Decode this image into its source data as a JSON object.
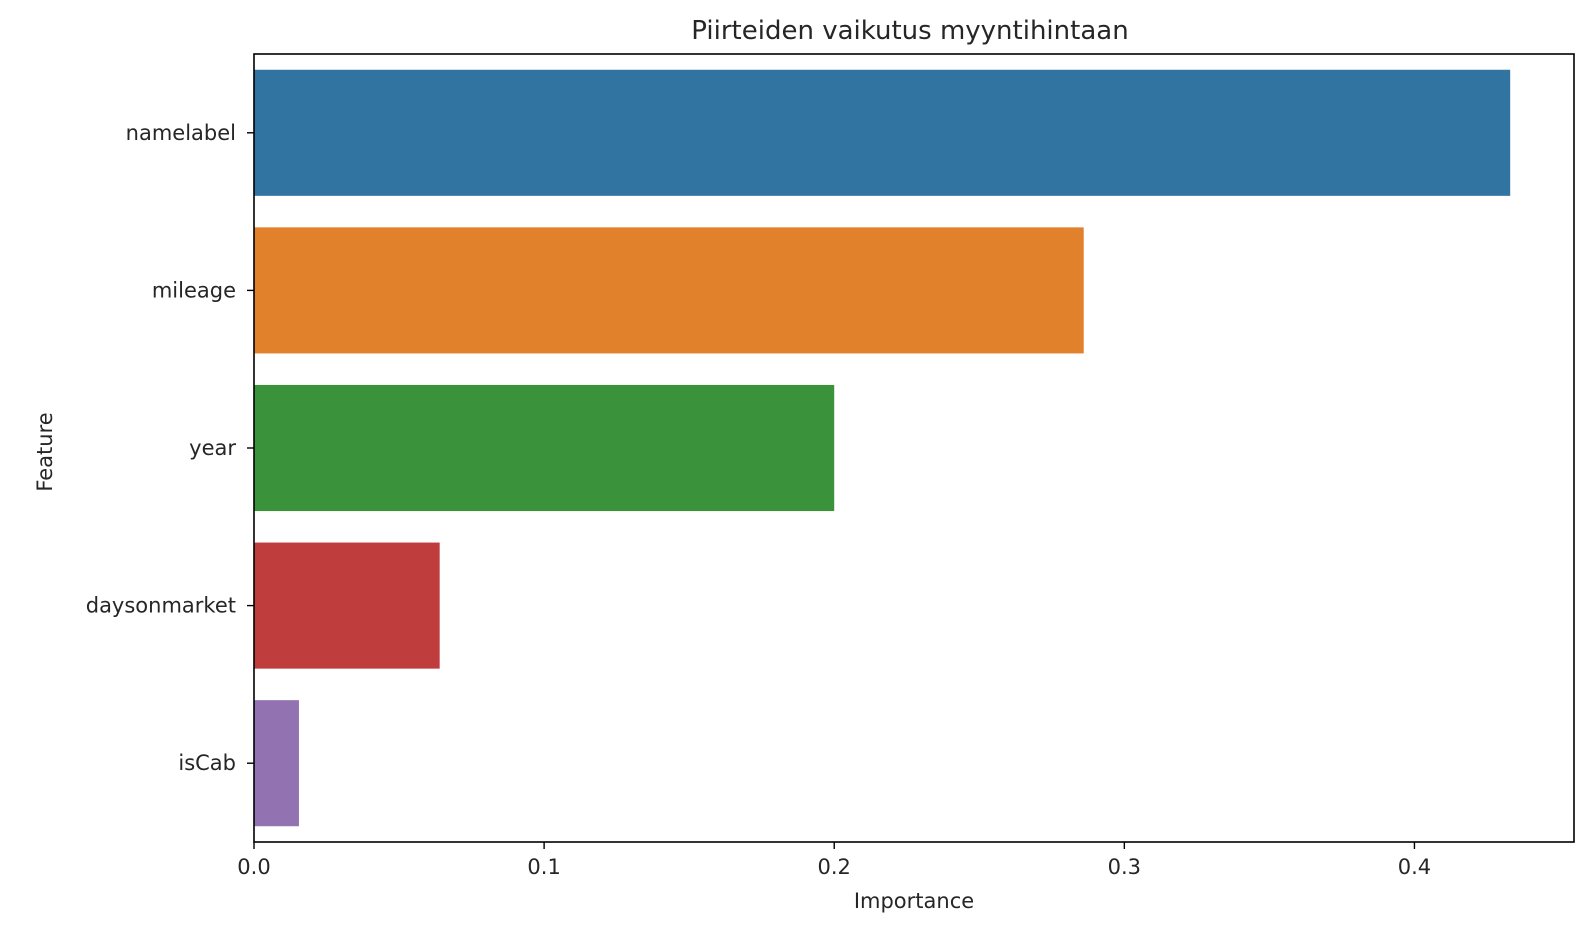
{
  "chart_data": {
    "type": "bar",
    "orientation": "horizontal",
    "title": "Piirteiden vaikutus myyntihintaan",
    "xlabel": "Importance",
    "ylabel": "Feature",
    "categories": [
      "namelabel",
      "mileage",
      "year",
      "daysonmarket",
      "isCab"
    ],
    "values": [
      0.433,
      0.286,
      0.2,
      0.064,
      0.0155
    ],
    "colors": [
      "#3274a1",
      "#e1812c",
      "#3a923a",
      "#c03d3e",
      "#9372b2"
    ],
    "xlim": [
      0,
      0.455
    ],
    "xticks": [
      0.0,
      0.1,
      0.2,
      0.3,
      0.4
    ],
    "xtick_labels": [
      "0.0",
      "0.1",
      "0.2",
      "0.3",
      "0.4"
    ],
    "grid": false,
    "legend": "none"
  }
}
